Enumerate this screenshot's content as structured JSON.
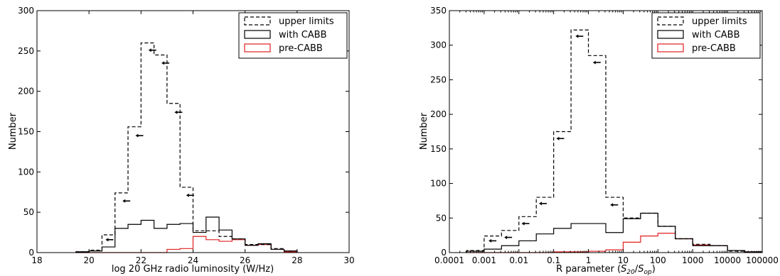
{
  "chart_data": [
    {
      "type": "step",
      "xlabel": "log 20 GHz radio luminosity (W/Hz)",
      "ylabel": "Number",
      "xlim": [
        18,
        30
      ],
      "ylim": [
        0,
        300
      ],
      "xticks": [
        "18",
        "20",
        "22",
        "24",
        "26",
        "28",
        "30"
      ],
      "yticks": [
        "0",
        "50",
        "100",
        "150",
        "200",
        "250",
        "300"
      ],
      "bin_edges": [
        19.5,
        20,
        20.5,
        21,
        21.5,
        22,
        22.5,
        23,
        23.5,
        24,
        24.5,
        25,
        25.5,
        26,
        26.5,
        27,
        27.5,
        28
      ],
      "series": [
        {
          "name": "upper limits",
          "style": "dashed",
          "color": "#000000",
          "values": [
            1,
            3,
            22,
            74,
            156,
            260,
            245,
            185,
            81,
            27,
            27,
            20,
            17,
            10,
            10,
            5,
            2
          ]
        },
        {
          "name": "with CABB",
          "style": "solid",
          "color": "#000000",
          "values": [
            1,
            2,
            7,
            30,
            35,
            40,
            30,
            35,
            36,
            25,
            44,
            28,
            17,
            9,
            11,
            4,
            2
          ]
        },
        {
          "name": "pre-CABB",
          "style": "solid",
          "color": "#e02020",
          "values": [
            0,
            0,
            0,
            0,
            0,
            0,
            0,
            4,
            5,
            20,
            16,
            14,
            16,
            9,
            10,
            4,
            1
          ]
        }
      ],
      "arrows": [
        {
          "x": 20.8,
          "y": 16
        },
        {
          "x": 21.45,
          "y": 64
        },
        {
          "x": 21.95,
          "y": 145
        },
        {
          "x": 22.45,
          "y": 251
        },
        {
          "x": 22.95,
          "y": 235
        },
        {
          "x": 23.45,
          "y": 174
        },
        {
          "x": 23.9,
          "y": 71
        }
      ],
      "legend": {
        "position": "top-right",
        "entries": [
          "upper limits",
          "with CABB",
          "pre-CABB"
        ]
      }
    },
    {
      "type": "step",
      "xlabel_prefix": "R parameter (",
      "xlabel_math": "S",
      "xlabel_sub1": "20",
      "xlabel_slash": "/",
      "xlabel_sub2": "op",
      "xlabel_suffix": ")",
      "ylabel": "Number",
      "xscale": "log",
      "xlim_log10": [
        -4,
        5
      ],
      "ylim": [
        0,
        350
      ],
      "xticks": [
        "0.0001",
        "0.001",
        "0.01",
        "0.1",
        "1",
        "10",
        "100",
        "1000",
        "10000",
        "100000"
      ],
      "yticks": [
        "0",
        "50",
        "100",
        "150",
        "200",
        "250",
        "300",
        "350"
      ],
      "bin_edges_log10": [
        -3.5,
        -3,
        -2.5,
        -2,
        -1.5,
        -1,
        -0.5,
        0,
        0.5,
        1,
        1.5,
        2,
        2.5,
        3,
        3.5,
        4,
        4.5,
        5
      ],
      "series": [
        {
          "name": "upper limits",
          "style": "dashed",
          "color": "#000000",
          "values": [
            3,
            24,
            32,
            52,
            80,
            175,
            322,
            285,
            80,
            50,
            57,
            38,
            20,
            12,
            10,
            2,
            1
          ]
        },
        {
          "name": "with CABB",
          "style": "solid",
          "color": "#000000",
          "values": [
            2,
            5,
            10,
            17,
            27,
            35,
            42,
            42,
            29,
            49,
            57,
            38,
            20,
            10,
            10,
            3,
            1
          ]
        },
        {
          "name": "pre-CABB",
          "style": "solid",
          "color": "#e02020",
          "values": [
            0,
            0,
            0,
            0,
            0,
            1,
            1,
            2,
            4,
            15,
            24,
            28,
            20,
            11,
            10,
            3,
            1
          ]
        }
      ],
      "arrows": [
        {
          "x": -2.75,
          "y": 17
        },
        {
          "x": -2.3,
          "y": 22
        },
        {
          "x": -1.8,
          "y": 42
        },
        {
          "x": -1.3,
          "y": 71
        },
        {
          "x": -0.8,
          "y": 165
        },
        {
          "x": -0.25,
          "y": 313
        },
        {
          "x": 0.25,
          "y": 275
        },
        {
          "x": 0.75,
          "y": 69
        }
      ],
      "legend": {
        "position": "top-right",
        "entries": [
          "upper limits",
          "with CABB",
          "pre-CABB"
        ]
      }
    }
  ]
}
